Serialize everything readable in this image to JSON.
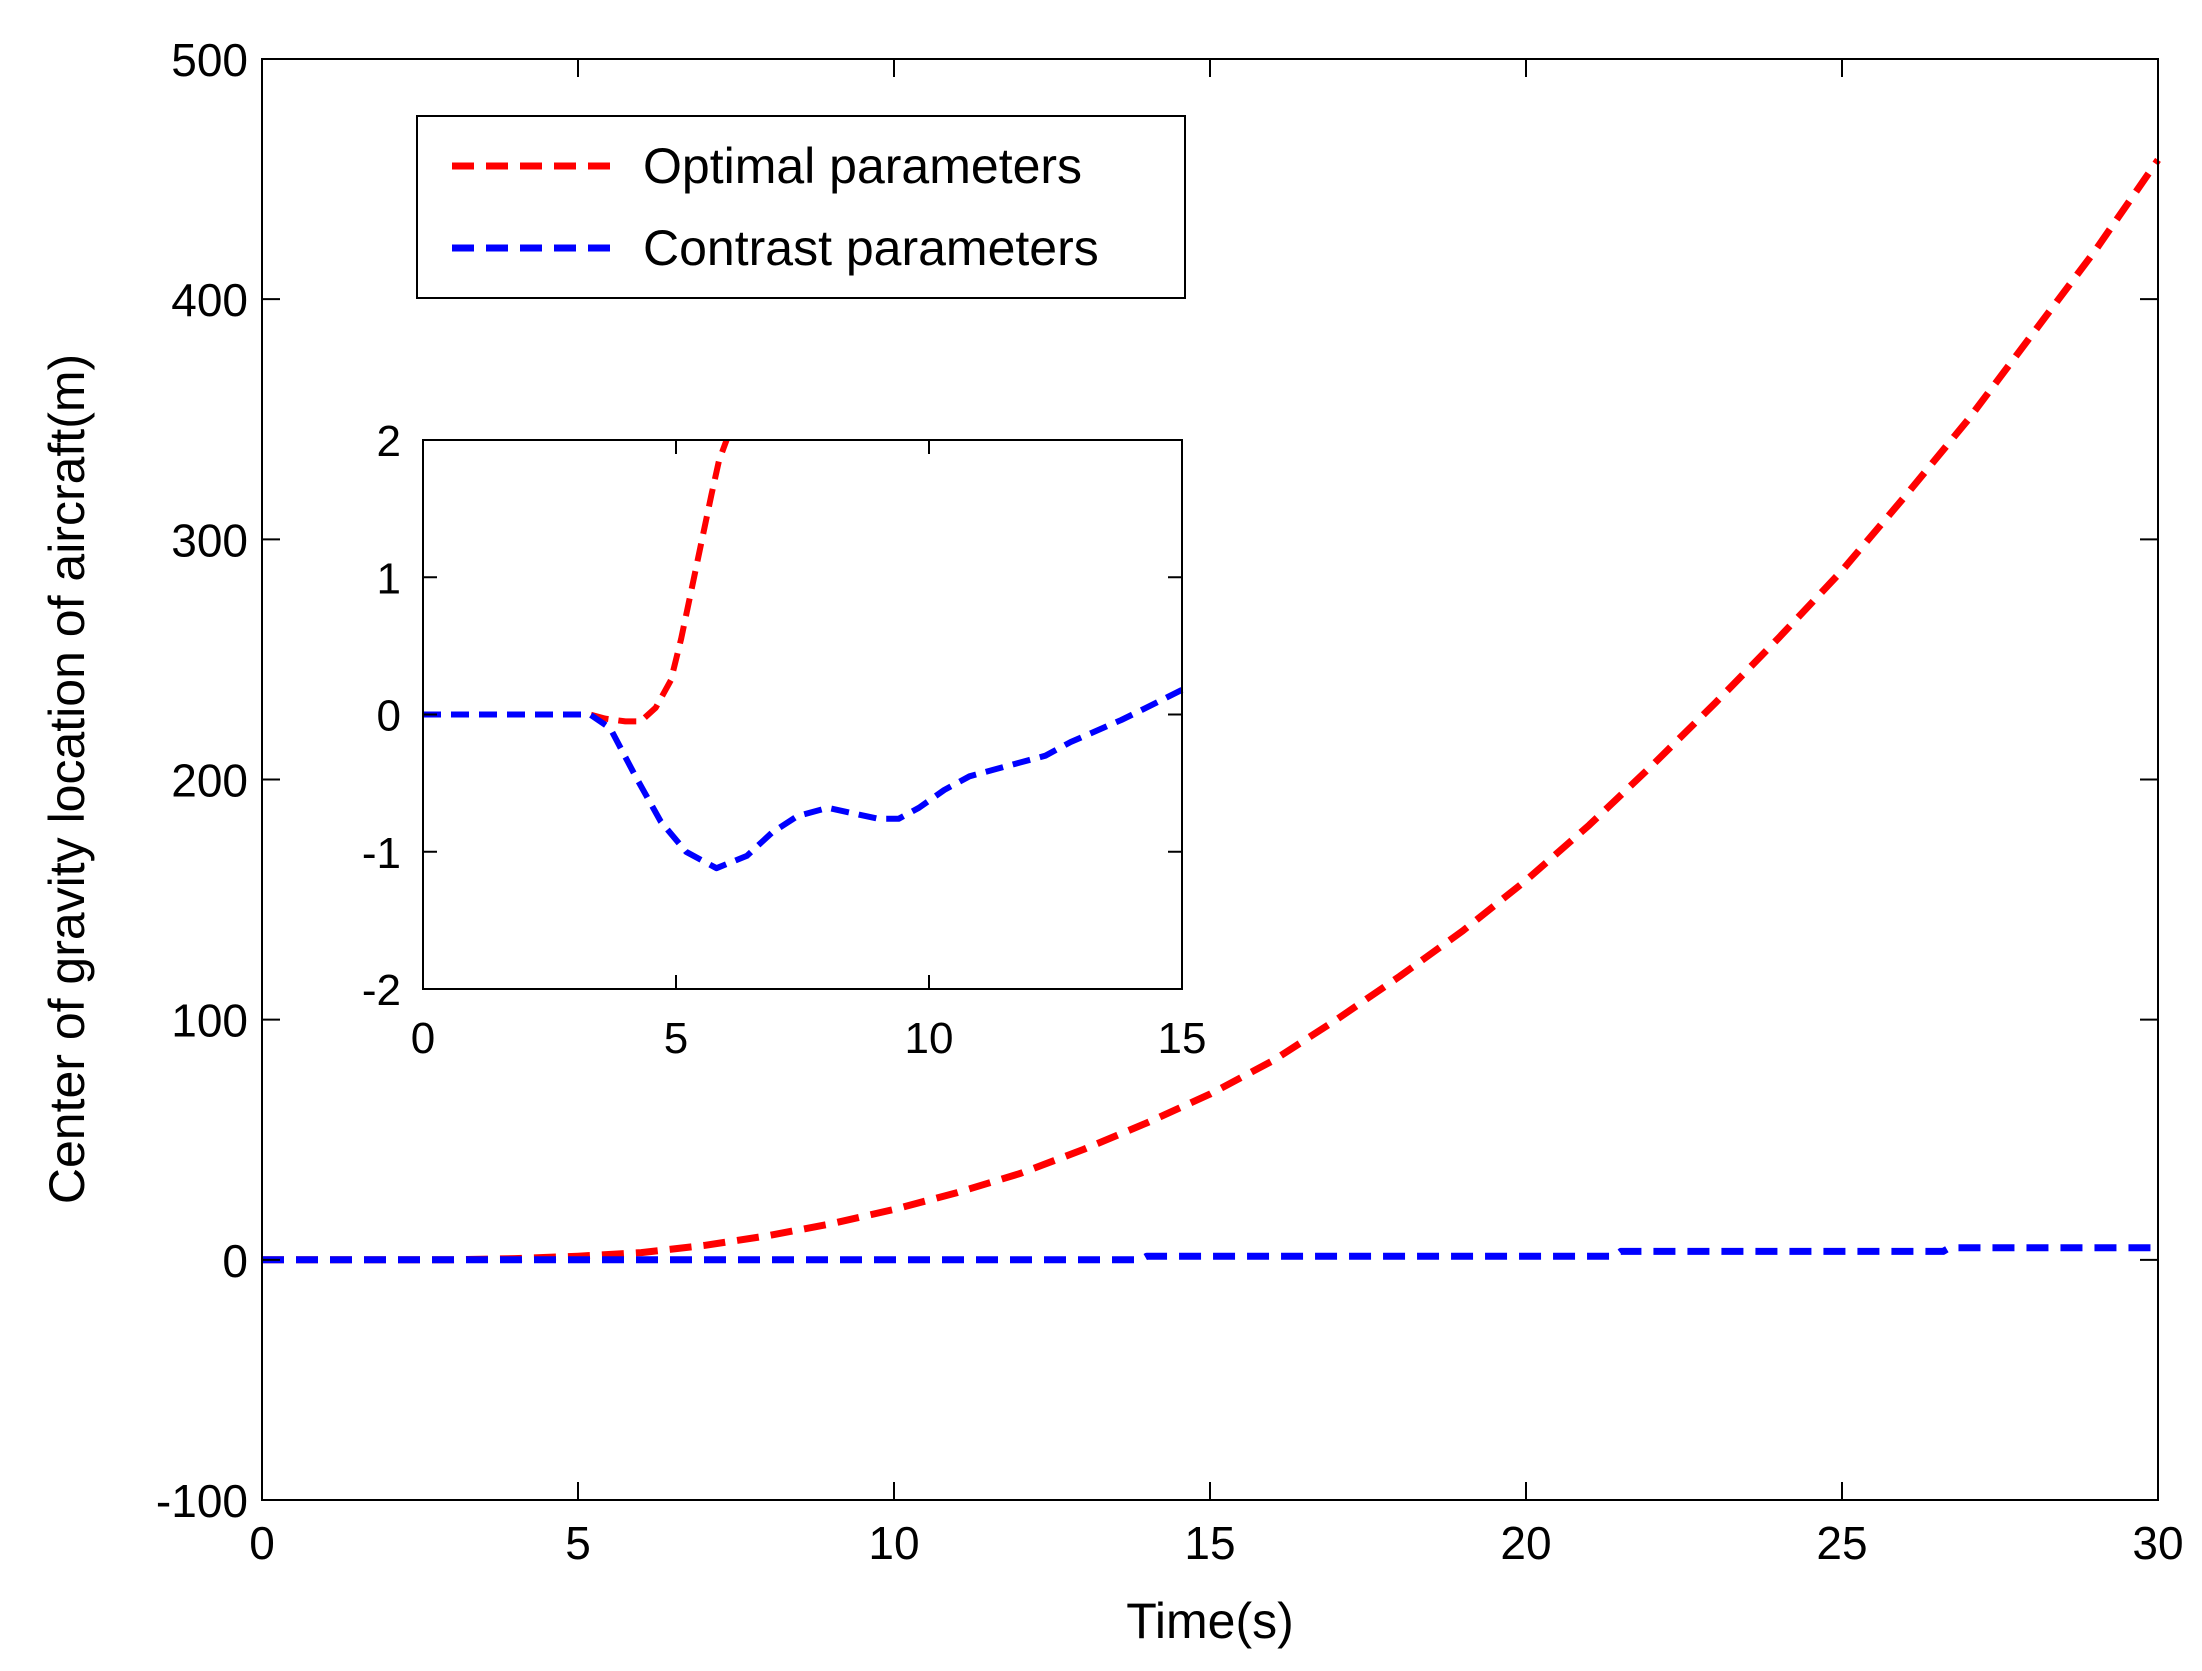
{
  "chart_data": [
    {
      "id": "main",
      "type": "line",
      "title": "",
      "xlabel": "Time(s)",
      "ylabel": "Center of gravity location of aircraft(m)",
      "xlim": [
        0,
        30
      ],
      "ylim": [
        -100,
        500
      ],
      "xticks": [
        0,
        5,
        10,
        15,
        20,
        25,
        30
      ],
      "yticks": [
        -100,
        0,
        100,
        200,
        300,
        400,
        500
      ],
      "grid": false,
      "legend_position": "top-left",
      "series": [
        {
          "name": "Optimal parameters",
          "color": "#ff0000",
          "style": "dashed",
          "x": [
            0,
            3,
            4,
            5,
            6,
            7,
            8,
            9,
            10,
            11,
            12,
            13,
            14,
            15,
            16,
            17,
            18,
            19,
            20,
            21,
            22,
            23,
            24,
            25,
            26,
            27,
            28,
            29,
            30
          ],
          "y": [
            0,
            0,
            0.5,
            1.5,
            3,
            6,
            10,
            15,
            21,
            28,
            36,
            46,
            57,
            69,
            83,
            100,
            118,
            137,
            158,
            181,
            206,
            232,
            259,
            287,
            318,
            350,
            385,
            420,
            458
          ]
        },
        {
          "name": "Contrast parameters",
          "color": "#0000ff",
          "style": "dashed",
          "x": [
            0,
            13.9,
            14,
            21.4,
            21.5,
            26.6,
            26.7,
            30
          ],
          "y": [
            0,
            0,
            1.5,
            1.5,
            3.5,
            3.5,
            5,
            5
          ]
        }
      ]
    },
    {
      "id": "inset",
      "type": "line",
      "xlim": [
        0,
        15
      ],
      "ylim": [
        -2,
        2
      ],
      "xticks": [
        0,
        5,
        10,
        15
      ],
      "yticks": [
        -2,
        -1,
        0,
        1,
        2
      ],
      "grid": false,
      "series": [
        {
          "name": "Optimal parameters",
          "color": "#ff0000",
          "style": "dashed",
          "x": [
            0,
            3.3,
            3.6,
            4,
            4.3,
            4.6,
            4.9,
            5.1,
            5.3,
            5.5,
            5.7,
            5.85,
            6.0
          ],
          "y": [
            0,
            0,
            -0.03,
            -0.05,
            -0.05,
            0.05,
            0.25,
            0.55,
            0.9,
            1.25,
            1.6,
            1.85,
            2.0
          ]
        },
        {
          "name": "Contrast parameters",
          "color": "#0000ff",
          "style": "dashed",
          "x": [
            0,
            3.3,
            3.7,
            4.2,
            4.7,
            5.2,
            5.8,
            6.4,
            6.9,
            7.4,
            8.0,
            8.5,
            9.0,
            9.4,
            9.8,
            10.3,
            10.8,
            11.3,
            11.8,
            12.3,
            12.8,
            13.3,
            13.8,
            14.3,
            15.0
          ],
          "y": [
            0,
            0,
            -0.1,
            -0.45,
            -0.78,
            -1.0,
            -1.12,
            -1.03,
            -0.86,
            -0.74,
            -0.68,
            -0.72,
            -0.76,
            -0.76,
            -0.68,
            -0.55,
            -0.45,
            -0.4,
            -0.35,
            -0.3,
            -0.2,
            -0.12,
            -0.04,
            0.05,
            0.18
          ]
        }
      ]
    }
  ]
}
